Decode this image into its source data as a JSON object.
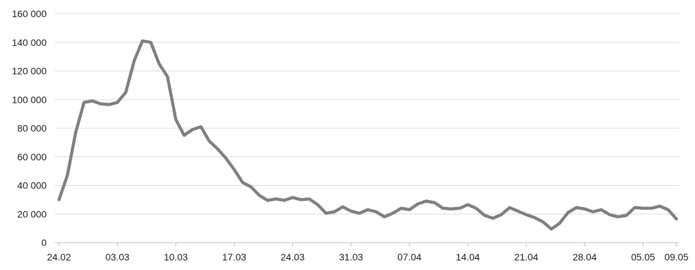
{
  "chart_data": {
    "type": "line",
    "title": "",
    "xlabel": "",
    "ylabel": "",
    "ylim": [
      0,
      160000
    ],
    "grid": "horizontal",
    "legend": "none",
    "y_ticks": [
      {
        "value": 0,
        "label": "0"
      },
      {
        "value": 20000,
        "label": "20 000"
      },
      {
        "value": 40000,
        "label": "40 000"
      },
      {
        "value": 60000,
        "label": "60 000"
      },
      {
        "value": 80000,
        "label": "80 000"
      },
      {
        "value": 100000,
        "label": "100 000"
      },
      {
        "value": 120000,
        "label": "120 000"
      },
      {
        "value": 140000,
        "label": "140 000"
      },
      {
        "value": 160000,
        "label": "160 000"
      }
    ],
    "x_ticks": [
      {
        "index": 0,
        "label": "24.02"
      },
      {
        "index": 7,
        "label": "03.03"
      },
      {
        "index": 14,
        "label": "10.03"
      },
      {
        "index": 21,
        "label": "17.03"
      },
      {
        "index": 28,
        "label": "24.03"
      },
      {
        "index": 35,
        "label": "31.03"
      },
      {
        "index": 42,
        "label": "07.04"
      },
      {
        "index": 49,
        "label": "14.04"
      },
      {
        "index": 56,
        "label": "21.04"
      },
      {
        "index": 63,
        "label": "28.04"
      },
      {
        "index": 70,
        "label": "05.05"
      },
      {
        "index": 74,
        "label": "09.05"
      }
    ],
    "colors": {
      "line": "#7f7f7f",
      "grid": "#d9d9d9",
      "axis": "#bfbfbf",
      "text": "#1a1a1a"
    },
    "series": [
      {
        "values": [
          30000,
          47000,
          77000,
          98000,
          99000,
          97000,
          96500,
          98000,
          105000,
          127000,
          141000,
          140000,
          125000,
          116000,
          86000,
          75000,
          79000,
          81000,
          71000,
          65500,
          59000,
          51000,
          42000,
          39000,
          33000,
          29500,
          30500,
          29500,
          31500,
          30000,
          30500,
          26500,
          20500,
          21500,
          25000,
          22000,
          20500,
          23000,
          21500,
          18000,
          20500,
          24000,
          23000,
          27000,
          29000,
          28000,
          24000,
          23500,
          24000,
          26500,
          24000,
          19000,
          17000,
          19500,
          24500,
          22000,
          19500,
          17500,
          14500,
          9500,
          13500,
          21000,
          24500,
          23500,
          21500,
          23000,
          19500,
          18000,
          19000,
          24500,
          24000,
          24000,
          25500,
          23000,
          16500
        ]
      }
    ]
  }
}
